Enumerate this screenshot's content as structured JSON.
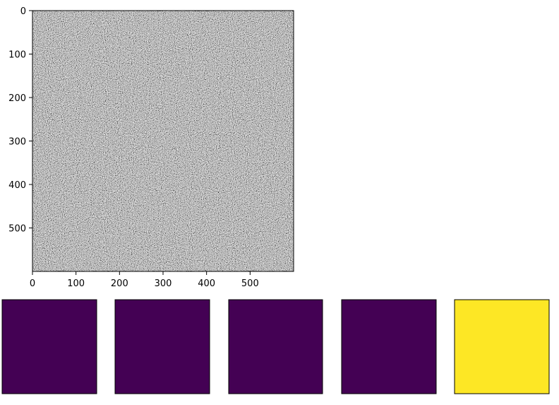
{
  "chart_data": [
    {
      "type": "heatmap",
      "title": "",
      "xlabel": "",
      "ylabel": "",
      "colormap": "gray",
      "content": "random noise",
      "image_size": [
        600,
        600
      ],
      "xlim": [
        0,
        600
      ],
      "ylim": [
        600,
        0
      ],
      "xticks": [
        0,
        100,
        200,
        300,
        400,
        500
      ],
      "yticks": [
        0,
        100,
        200,
        300,
        400,
        500
      ],
      "xtick_labels": [
        "0",
        "100",
        "200",
        "300",
        "400",
        "500"
      ],
      "ytick_labels": [
        "0",
        "100",
        "200",
        "300",
        "400",
        "500"
      ],
      "grid": false,
      "colors": {
        "mean_gray": "#808080",
        "axes": "#000000"
      }
    },
    {
      "type": "heatmap",
      "panels": [
        {
          "fill": "#440154",
          "axes_visible": false
        },
        {
          "fill": "#440154",
          "axes_visible": false
        },
        {
          "fill": "#440154",
          "axes_visible": false
        },
        {
          "fill": "#440154",
          "axes_visible": false
        },
        {
          "fill": "#fde725",
          "axes_visible": false
        }
      ],
      "colormap": "viridis"
    }
  ]
}
